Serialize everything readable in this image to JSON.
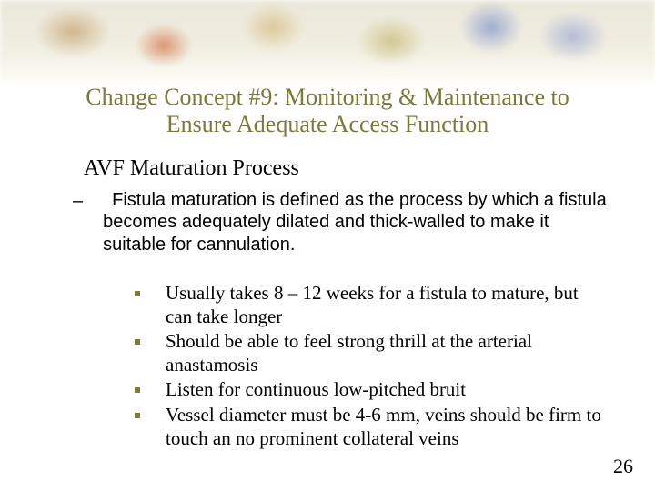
{
  "title": "Change Concept #9: Monitoring & Maintenance to Ensure Adequate Access Function",
  "subheading": "AVF Maturation Process",
  "level1": "Fistula maturation is defined as the process by which a fistula becomes adequately dilated and thick-walled to make it suitable for cannulation.",
  "bullets": [
    "Usually takes 8 – 12 weeks for a fistula to mature, but can take longer",
    "Should be able to feel strong thrill at the arterial anastamosis",
    "Listen for continuous low-pitched bruit",
    "Vessel diameter must be 4-6 mm, veins should be firm to touch an no prominent collateral veins"
  ],
  "page_number": "26",
  "colors": {
    "title_color": "#7a7a3a",
    "bullet_color": "#7a7a3a",
    "text_color": "#000000",
    "background": "#ffffff"
  },
  "fonts": {
    "title_family": "Times New Roman",
    "title_size_pt": 20,
    "sub_size_pt": 18,
    "body_sans_family": "Arial",
    "body_serif_family": "Times New Roman"
  }
}
